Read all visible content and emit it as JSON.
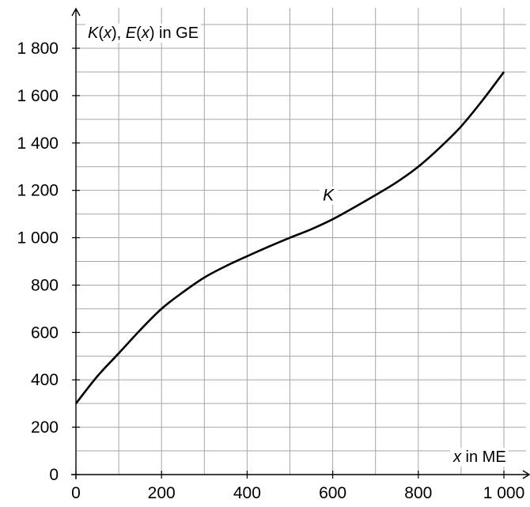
{
  "chart_data": {
    "type": "line",
    "title": "",
    "xlabel_parts": [
      {
        "text": "x",
        "italic": true
      },
      {
        "text": " in ME",
        "italic": false
      }
    ],
    "ylabel_parts": [
      {
        "text": "K",
        "italic": true
      },
      {
        "text": "(",
        "italic": false
      },
      {
        "text": "x",
        "italic": true
      },
      {
        "text": "), ",
        "italic": false
      },
      {
        "text": "E",
        "italic": true
      },
      {
        "text": "(",
        "italic": false
      },
      {
        "text": "x",
        "italic": true
      },
      {
        "text": ") in GE",
        "italic": false
      }
    ],
    "xlim": [
      0,
      1000
    ],
    "ylim": [
      0,
      1800
    ],
    "x_ticks": [
      {
        "value": 0,
        "label": "0"
      },
      {
        "value": 200,
        "label": "200"
      },
      {
        "value": 400,
        "label": "400"
      },
      {
        "value": 600,
        "label": "600"
      },
      {
        "value": 800,
        "label": "800"
      },
      {
        "value": 1000,
        "label": "1 000"
      }
    ],
    "y_ticks": [
      {
        "value": 0,
        "label": "0"
      },
      {
        "value": 200,
        "label": "200"
      },
      {
        "value": 400,
        "label": "400"
      },
      {
        "value": 600,
        "label": "600"
      },
      {
        "value": 800,
        "label": "800"
      },
      {
        "value": 1000,
        "label": "1 000"
      },
      {
        "value": 1200,
        "label": "1 200"
      },
      {
        "value": 1400,
        "label": "1 400"
      },
      {
        "value": 1600,
        "label": "1 600"
      },
      {
        "value": 1800,
        "label": "1 800"
      }
    ],
    "grid": true,
    "grid_x_step": 100,
    "grid_y_step": 100,
    "series": [
      {
        "name": "K",
        "color": "#000000",
        "x": [
          0,
          50,
          100,
          150,
          200,
          250,
          300,
          350,
          400,
          450,
          500,
          550,
          600,
          650,
          700,
          750,
          800,
          850,
          900,
          950,
          1000
        ],
        "y": [
          300,
          415,
          512,
          610,
          700,
          770,
          832,
          880,
          922,
          962,
          1000,
          1036,
          1078,
          1128,
          1180,
          1235,
          1300,
          1380,
          1470,
          1580,
          1700
        ]
      }
    ],
    "annotations": [
      {
        "text": "K",
        "x": 590,
        "y": 1180
      }
    ]
  }
}
